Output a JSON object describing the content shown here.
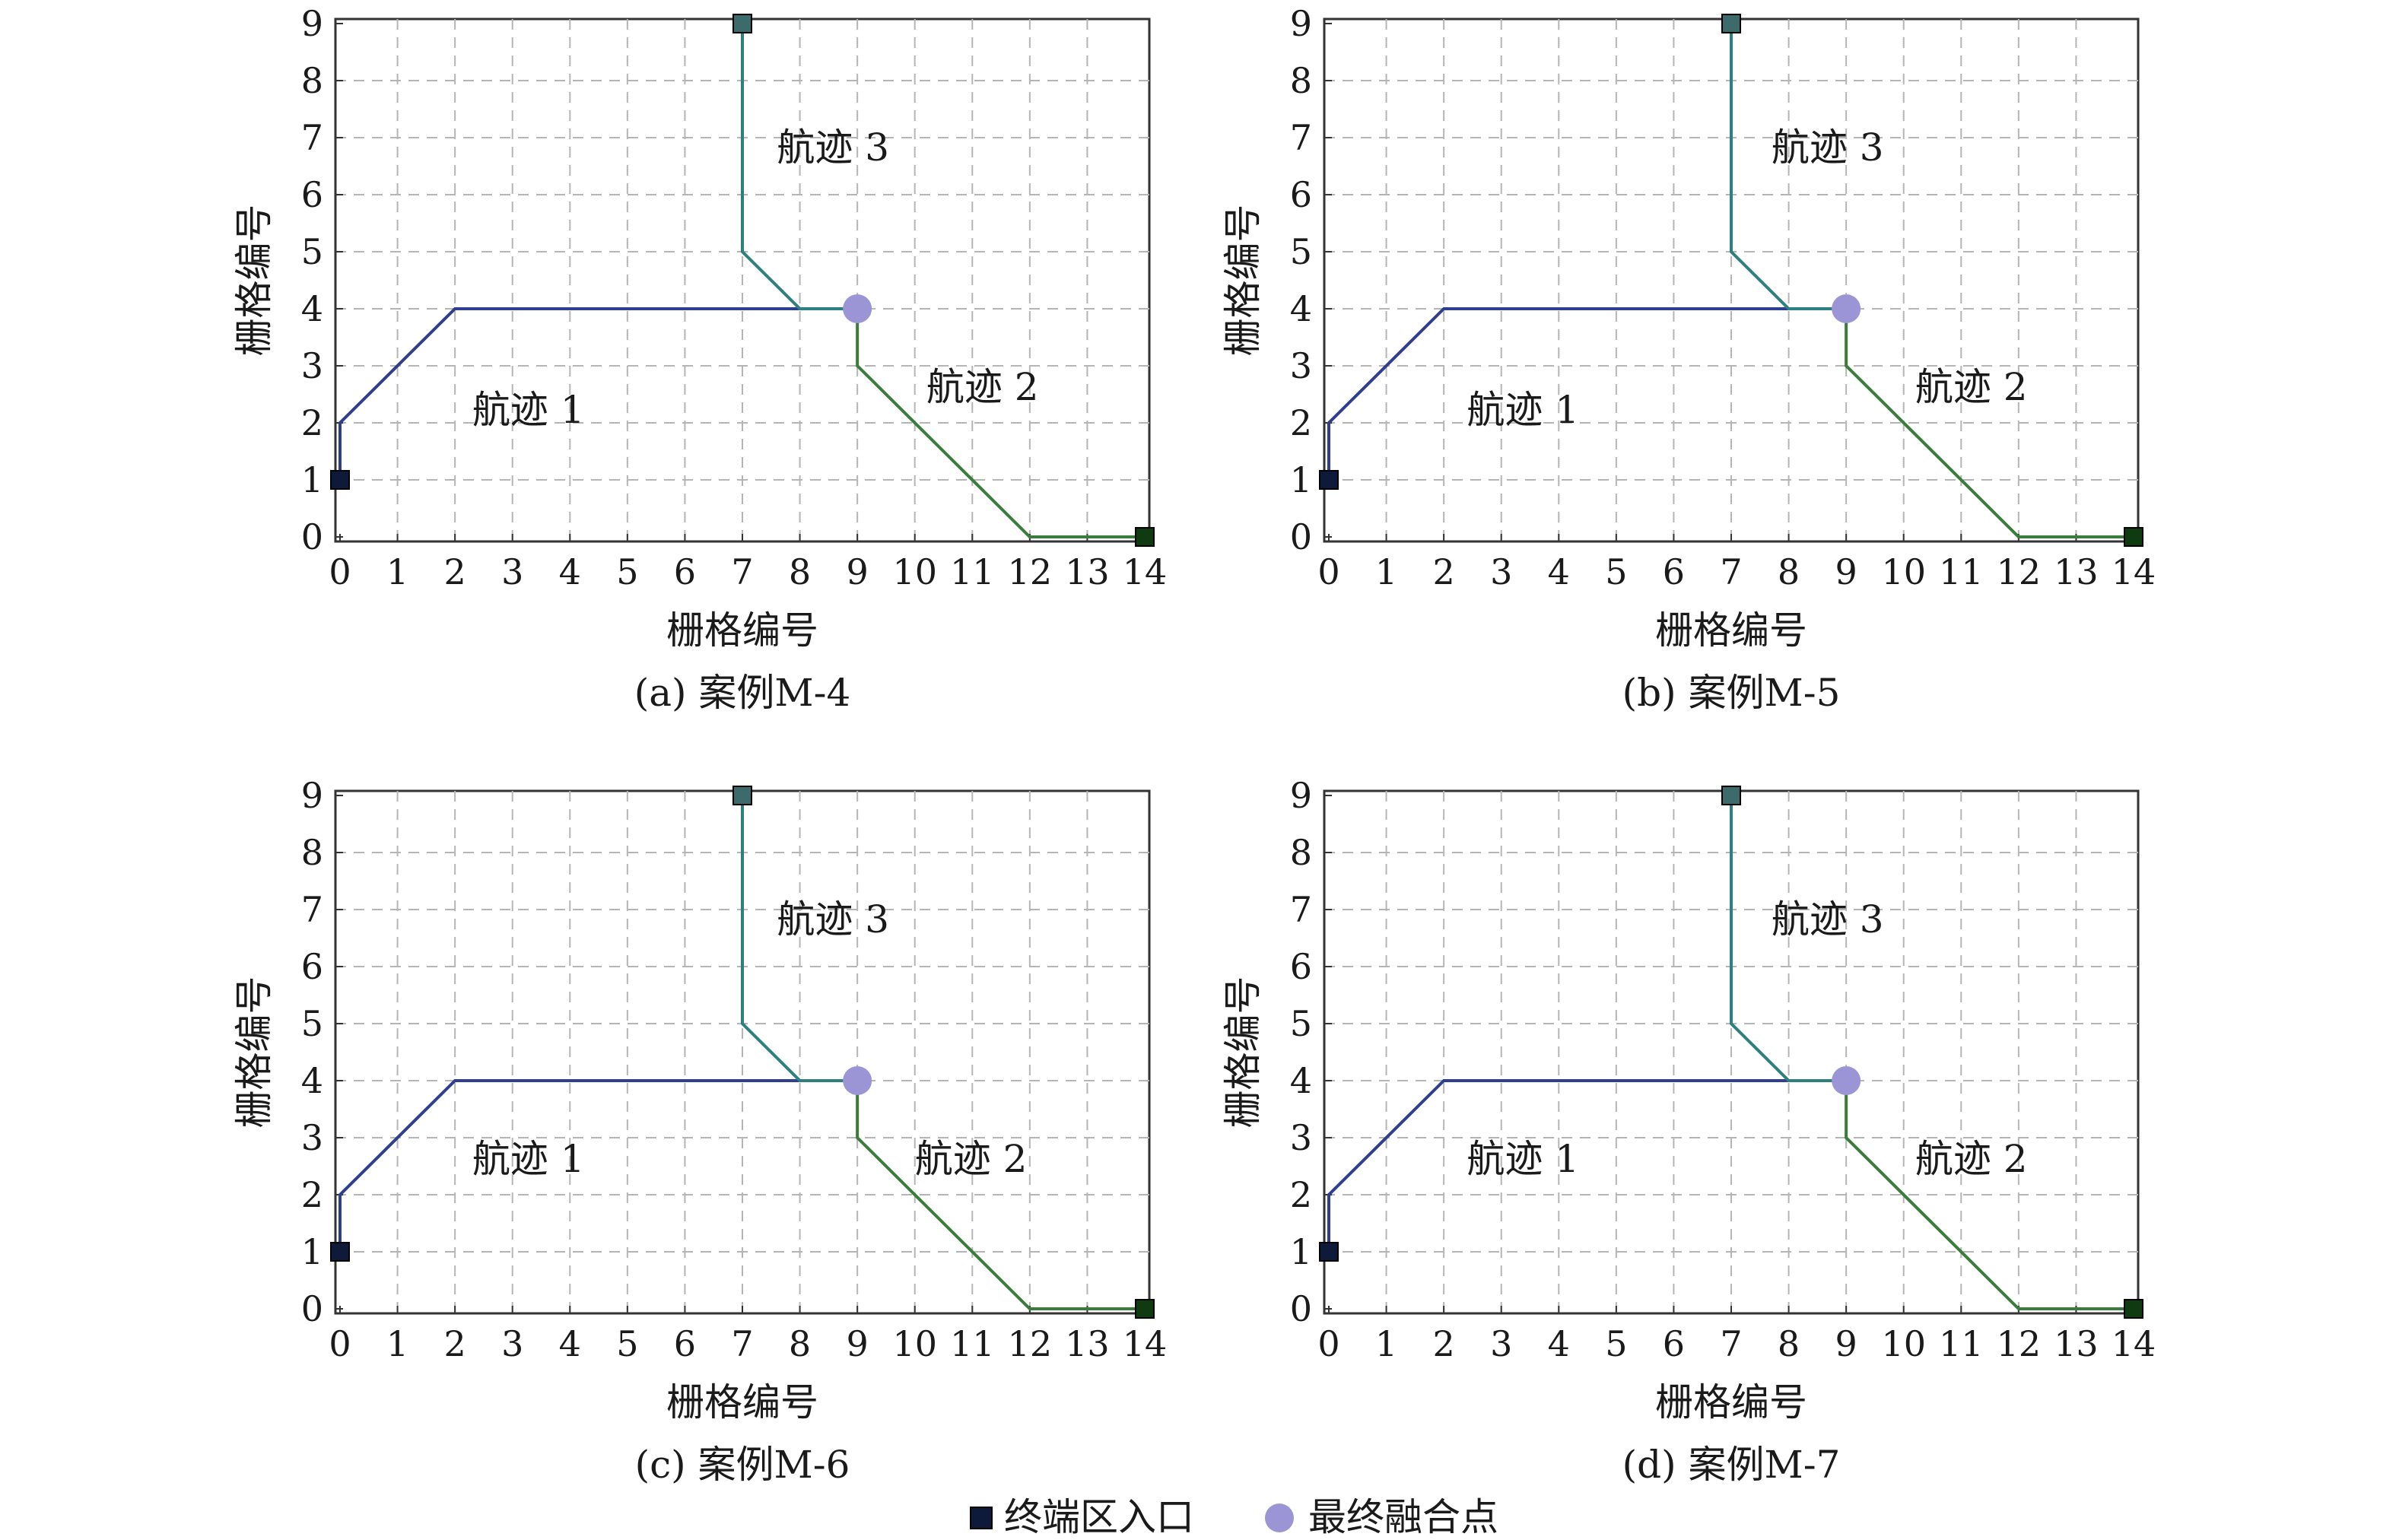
{
  "colors": {
    "track_1": "#2f3f8f",
    "track_2": "#3a7d3a",
    "track_3": "#2e7f7f",
    "entry_marker": "#0e1a3a",
    "merge_point": "#9b95d6"
  },
  "legend": {
    "entry_label": "终端区入口",
    "merge_label": "最终融合点"
  },
  "chart_data": [
    {
      "type": "line",
      "caption": "(a) 案例M-4",
      "xlabel": "栅格编号",
      "ylabel": "栅格编号",
      "xlim": [
        0,
        14
      ],
      "ylim": [
        0,
        9
      ],
      "xticks": [
        "0",
        "1",
        "2",
        "3",
        "4",
        "5",
        "6",
        "7",
        "8",
        "9",
        "10",
        "11",
        "12",
        "13",
        "14"
      ],
      "yticks": [
        "0",
        "1",
        "2",
        "3",
        "4",
        "5",
        "6",
        "7",
        "8",
        "9"
      ],
      "grid": true,
      "series": [
        {
          "name": "航迹 1",
          "label_pos": [
            2.3,
            2
          ],
          "points": [
            [
              0,
              1
            ],
            [
              0,
              2
            ],
            [
              2,
              4
            ],
            [
              8,
              4
            ],
            [
              9,
              4
            ]
          ]
        },
        {
          "name": "航迹 2",
          "label_pos": [
            10.2,
            2.4
          ],
          "points": [
            [
              14,
              0
            ],
            [
              12,
              0
            ],
            [
              9,
              3
            ],
            [
              9,
              4
            ]
          ]
        },
        {
          "name": "航迹 3",
          "label_pos": [
            7.6,
            6.6
          ],
          "points": [
            [
              7,
              9
            ],
            [
              7,
              5
            ],
            [
              8,
              4
            ],
            [
              9,
              4
            ]
          ]
        }
      ],
      "entries": [
        [
          0,
          1
        ],
        [
          14,
          0
        ],
        [
          7,
          9
        ]
      ],
      "merge_point": [
        9,
        4
      ]
    },
    {
      "type": "line",
      "caption": "(b) 案例M-5",
      "xlabel": "栅格编号",
      "ylabel": "栅格编号",
      "xlim": [
        0,
        14
      ],
      "ylim": [
        0,
        9
      ],
      "xticks": [
        "0",
        "1",
        "2",
        "3",
        "4",
        "5",
        "6",
        "7",
        "8",
        "9",
        "10",
        "11",
        "12",
        "13",
        "14"
      ],
      "yticks": [
        "0",
        "1",
        "2",
        "3",
        "4",
        "5",
        "6",
        "7",
        "8",
        "9"
      ],
      "grid": true,
      "series": [
        {
          "name": "航迹 1",
          "label_pos": [
            2.4,
            2
          ],
          "points": [
            [
              0,
              1
            ],
            [
              0,
              2
            ],
            [
              2,
              4
            ],
            [
              8,
              4
            ],
            [
              9,
              4
            ]
          ]
        },
        {
          "name": "航迹 2",
          "label_pos": [
            10.2,
            2.4
          ],
          "points": [
            [
              14,
              0
            ],
            [
              12,
              0
            ],
            [
              9,
              3
            ],
            [
              9,
              4
            ]
          ]
        },
        {
          "name": "航迹 3",
          "label_pos": [
            7.7,
            6.6
          ],
          "points": [
            [
              7,
              9
            ],
            [
              7,
              5
            ],
            [
              8,
              4
            ],
            [
              9,
              4
            ]
          ]
        }
      ],
      "entries": [
        [
          0,
          1
        ],
        [
          14,
          0
        ],
        [
          7,
          9
        ]
      ],
      "merge_point": [
        9,
        4
      ]
    },
    {
      "type": "line",
      "caption": "(c) 案例M-6",
      "xlabel": "栅格编号",
      "ylabel": "栅格编号",
      "xlim": [
        0,
        14
      ],
      "ylim": [
        0,
        9
      ],
      "xticks": [
        "0",
        "1",
        "2",
        "3",
        "4",
        "5",
        "6",
        "7",
        "8",
        "9",
        "10",
        "11",
        "12",
        "13",
        "14"
      ],
      "yticks": [
        "0",
        "1",
        "2",
        "3",
        "4",
        "5",
        "6",
        "7",
        "8",
        "9"
      ],
      "grid": true,
      "series": [
        {
          "name": "航迹 1",
          "label_pos": [
            2.3,
            2.4
          ],
          "points": [
            [
              0,
              1
            ],
            [
              0,
              2
            ],
            [
              2,
              4
            ],
            [
              8,
              4
            ],
            [
              9,
              4
            ]
          ]
        },
        {
          "name": "航迹 2",
          "label_pos": [
            10,
            2.4
          ],
          "points": [
            [
              14,
              0
            ],
            [
              12,
              0
            ],
            [
              9,
              3
            ],
            [
              9,
              4
            ]
          ]
        },
        {
          "name": "航迹 3",
          "label_pos": [
            7.6,
            6.6
          ],
          "points": [
            [
              7,
              9
            ],
            [
              7,
              5
            ],
            [
              8,
              4
            ],
            [
              9,
              4
            ]
          ]
        }
      ],
      "entries": [
        [
          0,
          1
        ],
        [
          14,
          0
        ],
        [
          7,
          9
        ]
      ],
      "merge_point": [
        9,
        4
      ]
    },
    {
      "type": "line",
      "caption": "(d) 案例M-7",
      "xlabel": "栅格编号",
      "ylabel": "栅格编号",
      "xlim": [
        0,
        14
      ],
      "ylim": [
        0,
        9
      ],
      "xticks": [
        "0",
        "1",
        "2",
        "3",
        "4",
        "5",
        "6",
        "7",
        "8",
        "9",
        "10",
        "11",
        "12",
        "13",
        "14"
      ],
      "yticks": [
        "0",
        "1",
        "2",
        "3",
        "4",
        "5",
        "6",
        "7",
        "8",
        "9"
      ],
      "grid": true,
      "series": [
        {
          "name": "航迹 1",
          "label_pos": [
            2.4,
            2.4
          ],
          "points": [
            [
              0,
              1
            ],
            [
              0,
              2
            ],
            [
              2,
              4
            ],
            [
              8,
              4
            ],
            [
              9,
              4
            ]
          ]
        },
        {
          "name": "航迹 2",
          "label_pos": [
            10.2,
            2.4
          ],
          "points": [
            [
              14,
              0
            ],
            [
              12,
              0
            ],
            [
              9,
              3
            ],
            [
              9,
              4
            ]
          ]
        },
        {
          "name": "航迹 3",
          "label_pos": [
            7.7,
            6.6
          ],
          "points": [
            [
              7,
              9
            ],
            [
              7,
              5
            ],
            [
              8,
              4
            ],
            [
              9,
              4
            ]
          ]
        }
      ],
      "entries": [
        [
          0,
          1
        ],
        [
          14,
          0
        ],
        [
          7,
          9
        ]
      ],
      "merge_point": [
        9,
        4
      ]
    }
  ]
}
